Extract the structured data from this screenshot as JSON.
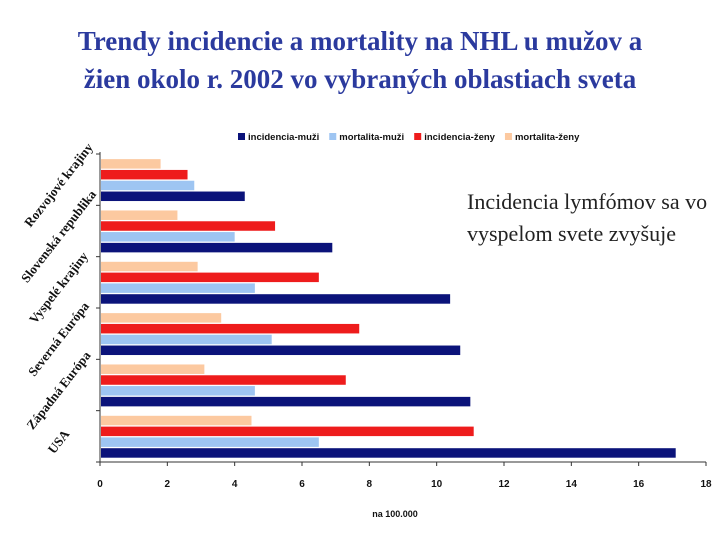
{
  "title_line1": "Trendy incidencie a mortality na NHL u mužov a",
  "title_line2": "žien okolo r. 2002 vo vybraných oblastiach sveta",
  "note_text": "Incidencia lymfómov sa vo vyspelom svete zvyšuje",
  "chart_data": {
    "type": "bar",
    "orientation": "horizontal",
    "categories": [
      "Rozvojové krajiny",
      "Slovenská republika",
      "Vyspelé krajiny",
      "Severná Európa",
      "Západná Európa",
      "USA"
    ],
    "series": [
      {
        "name": "incidencia-muži",
        "color": "#0b137a",
        "values": [
          4.3,
          6.9,
          10.4,
          10.7,
          11.0,
          17.1
        ]
      },
      {
        "name": "mortalita-muži",
        "color": "#9ec5f2",
        "values": [
          2.8,
          4.0,
          4.6,
          5.1,
          4.6,
          6.5
        ]
      },
      {
        "name": "incidencia-ženy",
        "color": "#ee1c1c",
        "values": [
          2.6,
          5.2,
          6.5,
          7.7,
          7.3,
          11.1
        ]
      },
      {
        "name": "mortalita-ženy",
        "color": "#fcc9a0",
        "values": [
          1.8,
          2.3,
          2.9,
          3.6,
          3.1,
          4.5
        ]
      }
    ],
    "xlim": [
      0,
      18
    ],
    "xticks": [
      "0",
      "2",
      "4",
      "6",
      "8",
      "10",
      "12",
      "14",
      "16",
      "18"
    ],
    "xlabel": "na 100.000",
    "ylabel": "",
    "legend_position": "top"
  }
}
